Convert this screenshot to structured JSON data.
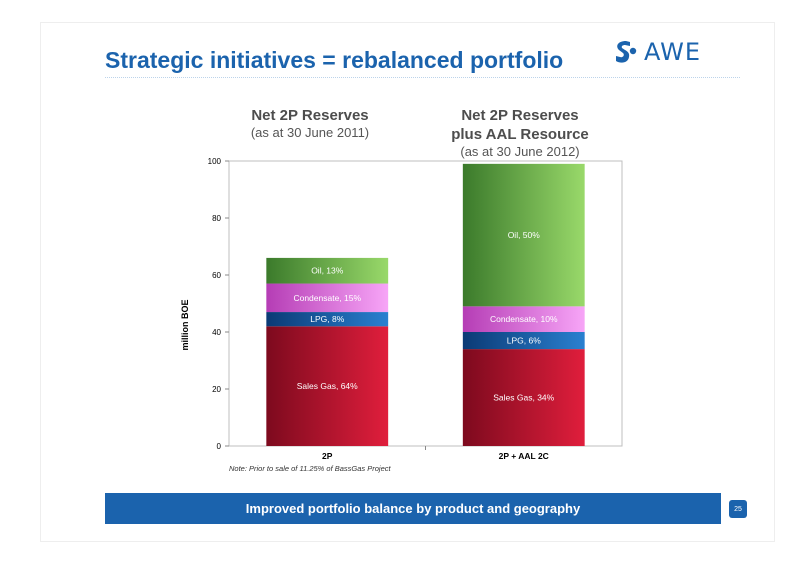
{
  "slide": {
    "title": "Strategic initiatives = rebalanced portfolio",
    "logo_text": "AWE",
    "page_number": "25"
  },
  "headings": {
    "left": {
      "line1": "Net 2P Reserves",
      "line2": "(as at 30 June 2011)"
    },
    "right": {
      "line1": "Net 2P Reserves",
      "line2": "plus AAL Resource",
      "line3": "(as at 30 June 2012)"
    }
  },
  "note": "Note: Prior to sale of 11.25% of BassGas Project",
  "banner": "Improved portfolio balance by product and geography",
  "colors": {
    "brand": "#1b63ad"
  },
  "chart_data": {
    "type": "bar",
    "stacked": true,
    "categories": [
      "2P",
      "2P + AAL 2C"
    ],
    "ylabel": "million BOE",
    "ylim": [
      0,
      100
    ],
    "yticks": [
      0,
      20,
      40,
      60,
      80,
      100
    ],
    "series": [
      {
        "key": "sales_gas",
        "values": [
          42,
          34
        ],
        "labels": [
          "Sales Gas, 64%",
          "Sales Gas, 34%"
        ],
        "color_dark": "#7d0a1e",
        "color_light": "#e01e3c"
      },
      {
        "key": "lpg",
        "values": [
          5,
          6
        ],
        "labels": [
          "LPG, 8%",
          "LPG, 6%"
        ],
        "color_dark": "#0b3a75",
        "color_light": "#2a80d0"
      },
      {
        "key": "condensate",
        "values": [
          10,
          9
        ],
        "labels": [
          "Condensate, 15%",
          "Condensate, 10%"
        ],
        "color_dark": "#b53db5",
        "color_light": "#f7a5f7"
      },
      {
        "key": "oil",
        "values": [
          9,
          50
        ],
        "labels": [
          "Oil, 13%",
          "Oil, 50%"
        ],
        "color_dark": "#3b7a2b",
        "color_light": "#99d96a"
      }
    ]
  }
}
